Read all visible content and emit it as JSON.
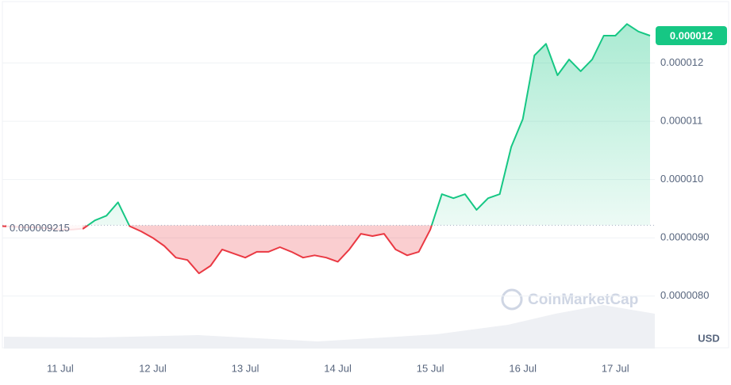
{
  "chart_data": {
    "type": "line",
    "categories": [
      null,
      null,
      null,
      null,
      null,
      "11 Jul",
      null,
      null,
      null,
      null,
      null,
      null,
      null,
      "12 Jul",
      null,
      null,
      null,
      null,
      null,
      null,
      null,
      "13 Jul",
      null,
      null,
      null,
      null,
      null,
      null,
      null,
      "14 Jul",
      null,
      null,
      null,
      null,
      null,
      null,
      null,
      "15 Jul",
      null,
      null,
      null,
      null,
      null,
      null,
      null,
      "16 Jul",
      null,
      null,
      null,
      null,
      null,
      null,
      null,
      "17 Jul",
      null,
      null,
      null
    ],
    "series": [
      {
        "values": [
          9.2e-06,
          9.19e-06,
          9.18e-06,
          9.18e-06,
          9.16e-06,
          9.14e-06,
          9.14e-06,
          9.16e-06,
          9.3e-06,
          9.38e-06,
          9.61e-06,
          9.2e-06,
          9.11e-06,
          9e-06,
          8.86e-06,
          8.66e-06,
          8.62e-06,
          8.39e-06,
          8.52e-06,
          8.8e-06,
          8.73e-06,
          8.66e-06,
          8.76e-06,
          8.76e-06,
          8.84e-06,
          8.76e-06,
          8.66e-06,
          8.7e-06,
          8.66e-06,
          8.59e-06,
          8.8e-06,
          9.07e-06,
          9.03e-06,
          9.07e-06,
          8.8e-06,
          8.7e-06,
          8.76e-06,
          9.14e-06,
          9.75e-06,
          9.68e-06,
          9.75e-06,
          9.48e-06,
          9.68e-06,
          9.75e-06,
          1.056e-05,
          1.104e-05,
          1.213e-05,
          1.233e-05,
          1.179e-05,
          1.206e-05,
          1.186e-05,
          1.206e-05,
          1.247e-05,
          1.247e-05,
          1.267e-05,
          1.254e-05,
          1.247e-05
        ]
      }
    ],
    "baseline": 9.215e-06,
    "up_color": "#16c784",
    "down_color": "#ea3943",
    "price_tag": {
      "value": 1.247e-05,
      "label": "0.000012"
    },
    "ylim": [
      7.1e-06,
      1.3e-05
    ],
    "yticks": [
      {
        "value": 8e-06,
        "label": "0.0000080"
      },
      {
        "value": 9e-06,
        "label": "0.0000090"
      },
      {
        "value": 1e-05,
        "label": "0.000010"
      },
      1.1e-05,
      1.2e-05
    ],
    "grid": true,
    "currency": "USD",
    "watermark": "CoinMarketCap"
  }
}
